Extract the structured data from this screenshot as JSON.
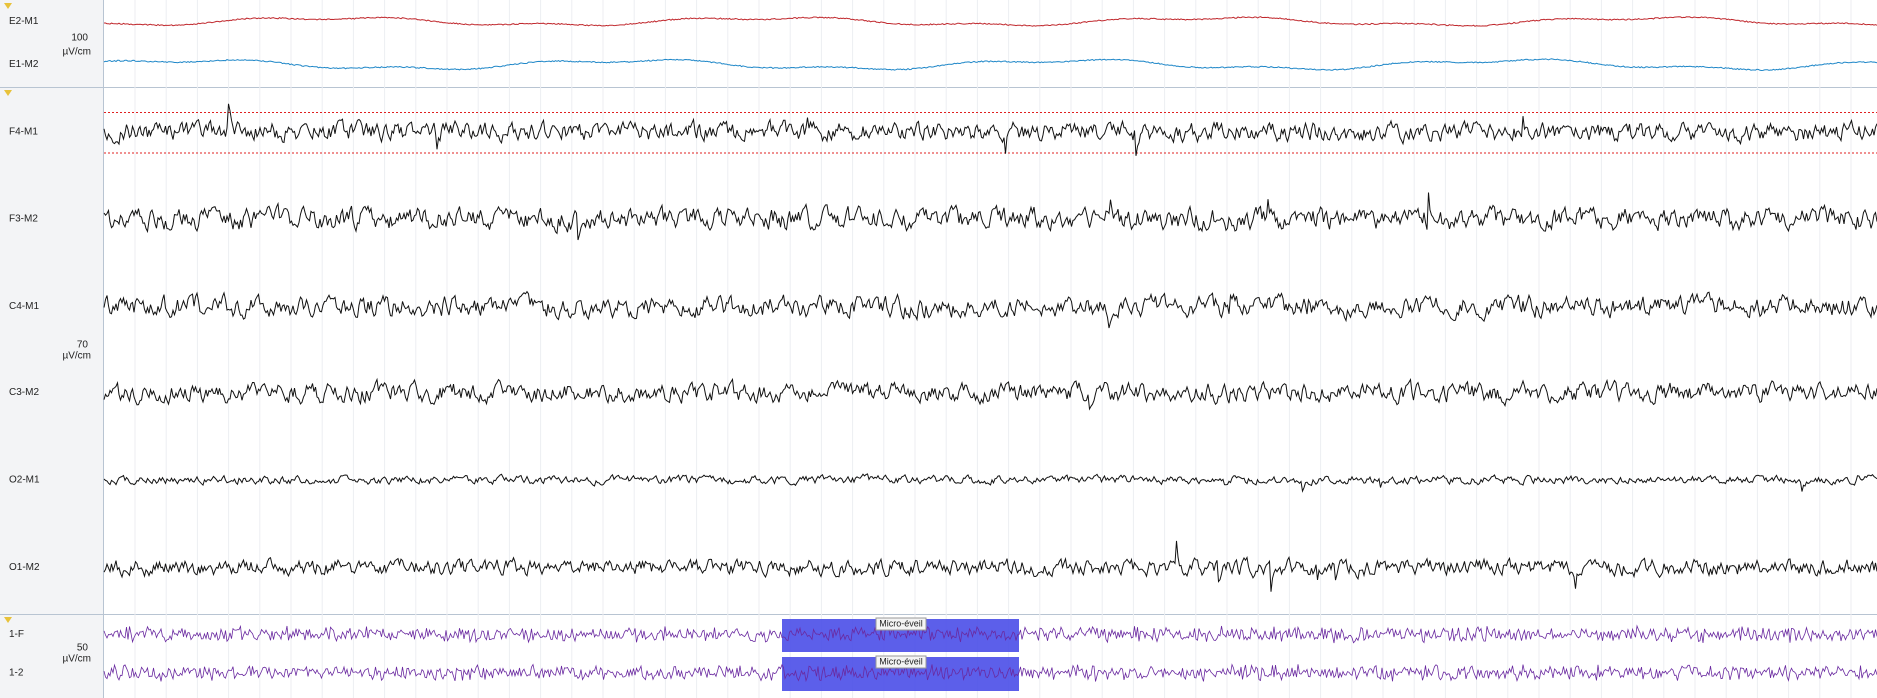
{
  "groups": [
    {
      "scale": "100",
      "unit": "µV/cm",
      "channels": [
        "E2-M1",
        "E1-M2"
      ]
    },
    {
      "scale": "70",
      "unit": "µV/cm",
      "channels": [
        "F4-M1",
        "F3-M2",
        "C4-M1",
        "C3-M2",
        "O2-M1",
        "O1-M2"
      ]
    },
    {
      "scale": "50",
      "unit": "µV/cm",
      "channels": [
        "1-F",
        "1-2"
      ]
    }
  ],
  "annotations": [
    "Micro-éveil",
    "Micro-éveil"
  ]
}
